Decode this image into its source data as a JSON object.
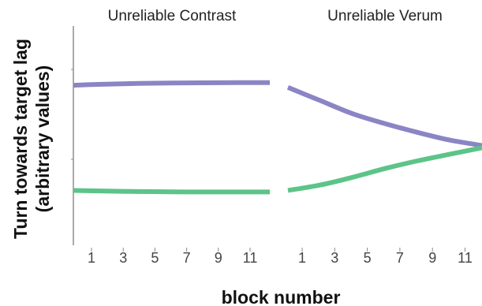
{
  "chart_data": {
    "type": "line",
    "ylabel_lines": [
      "Turn towards target lag",
      "(arbitrary values)"
    ],
    "xlabel": "block number",
    "y_tick_labels": false,
    "colors": {
      "purple": "#8a85c4",
      "green": "#5cc489"
    },
    "panels": [
      {
        "title": "Unreliable Contrast",
        "x_ticks": [
          1,
          3,
          5,
          7,
          9,
          11
        ],
        "xlim": [
          0,
          12
        ],
        "series": [
          {
            "color": "purple",
            "x": [
              0,
              2,
              4,
              6,
              8,
              10,
              12
            ],
            "y": [
              0.73,
              0.735,
              0.738,
              0.74,
              0.741,
              0.742,
              0.742
            ]
          },
          {
            "color": "green",
            "x": [
              0,
              2,
              4,
              6,
              8,
              10,
              12
            ],
            "y": [
              0.25,
              0.247,
              0.245,
              0.244,
              0.243,
              0.243,
              0.243
            ]
          }
        ]
      },
      {
        "title": "Unreliable Verum",
        "x_ticks": [
          1,
          3,
          5,
          7,
          9,
          11
        ],
        "xlim": [
          0,
          12
        ],
        "series": [
          {
            "color": "purple",
            "x": [
              0,
              2,
              4,
              6,
              8,
              10,
              12
            ],
            "y": [
              0.72,
              0.66,
              0.6,
              0.555,
              0.515,
              0.48,
              0.455
            ]
          },
          {
            "color": "green",
            "x": [
              0,
              2,
              4,
              6,
              8,
              10,
              12
            ],
            "y": [
              0.25,
              0.275,
              0.31,
              0.35,
              0.385,
              0.415,
              0.445
            ]
          }
        ]
      }
    ]
  }
}
